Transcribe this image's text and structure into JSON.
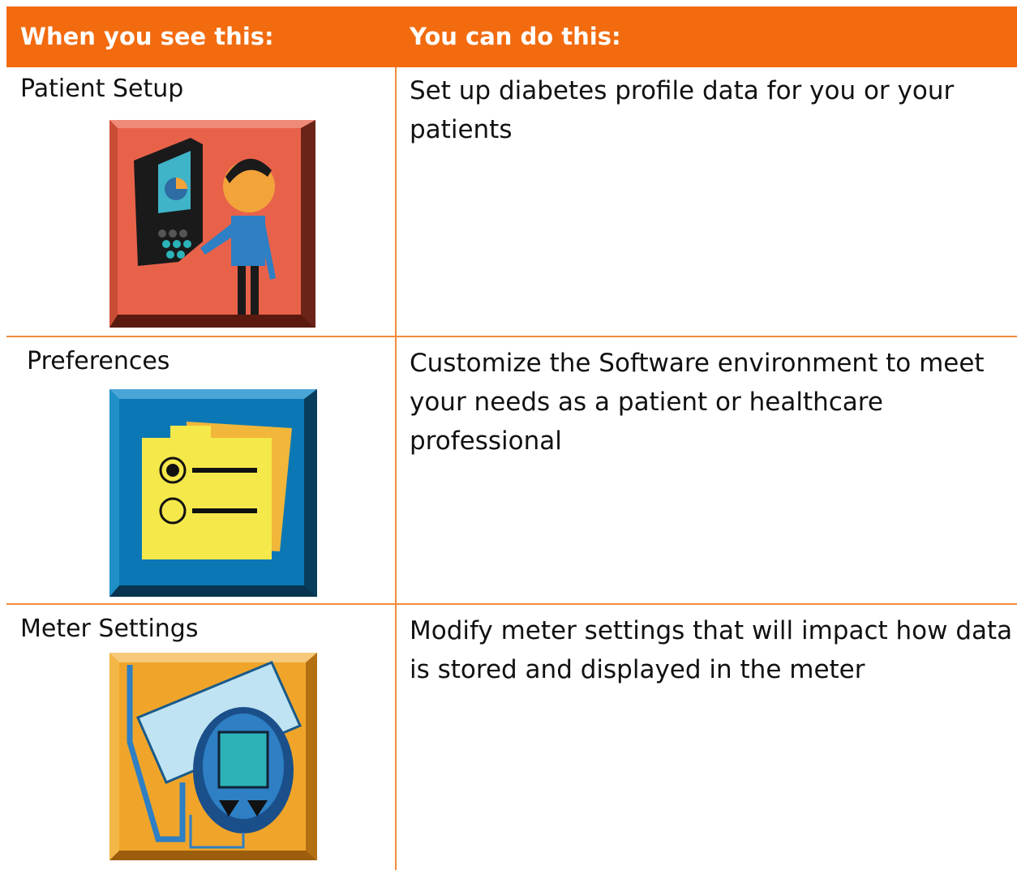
{
  "table": {
    "header": [
      "When you see this:",
      "You can do this:"
    ],
    "rows": [
      [
        "Patient Setup",
        "Set up diabetes profile data for you or your patients"
      ],
      [
        "Preferences",
        "Customize the Software environment to meet your needs as a patient or healthcare professional"
      ],
      [
        "Meter Settings",
        "Modify meter settings that will impact how data is stored and displayed in the meter"
      ]
    ]
  }
}
